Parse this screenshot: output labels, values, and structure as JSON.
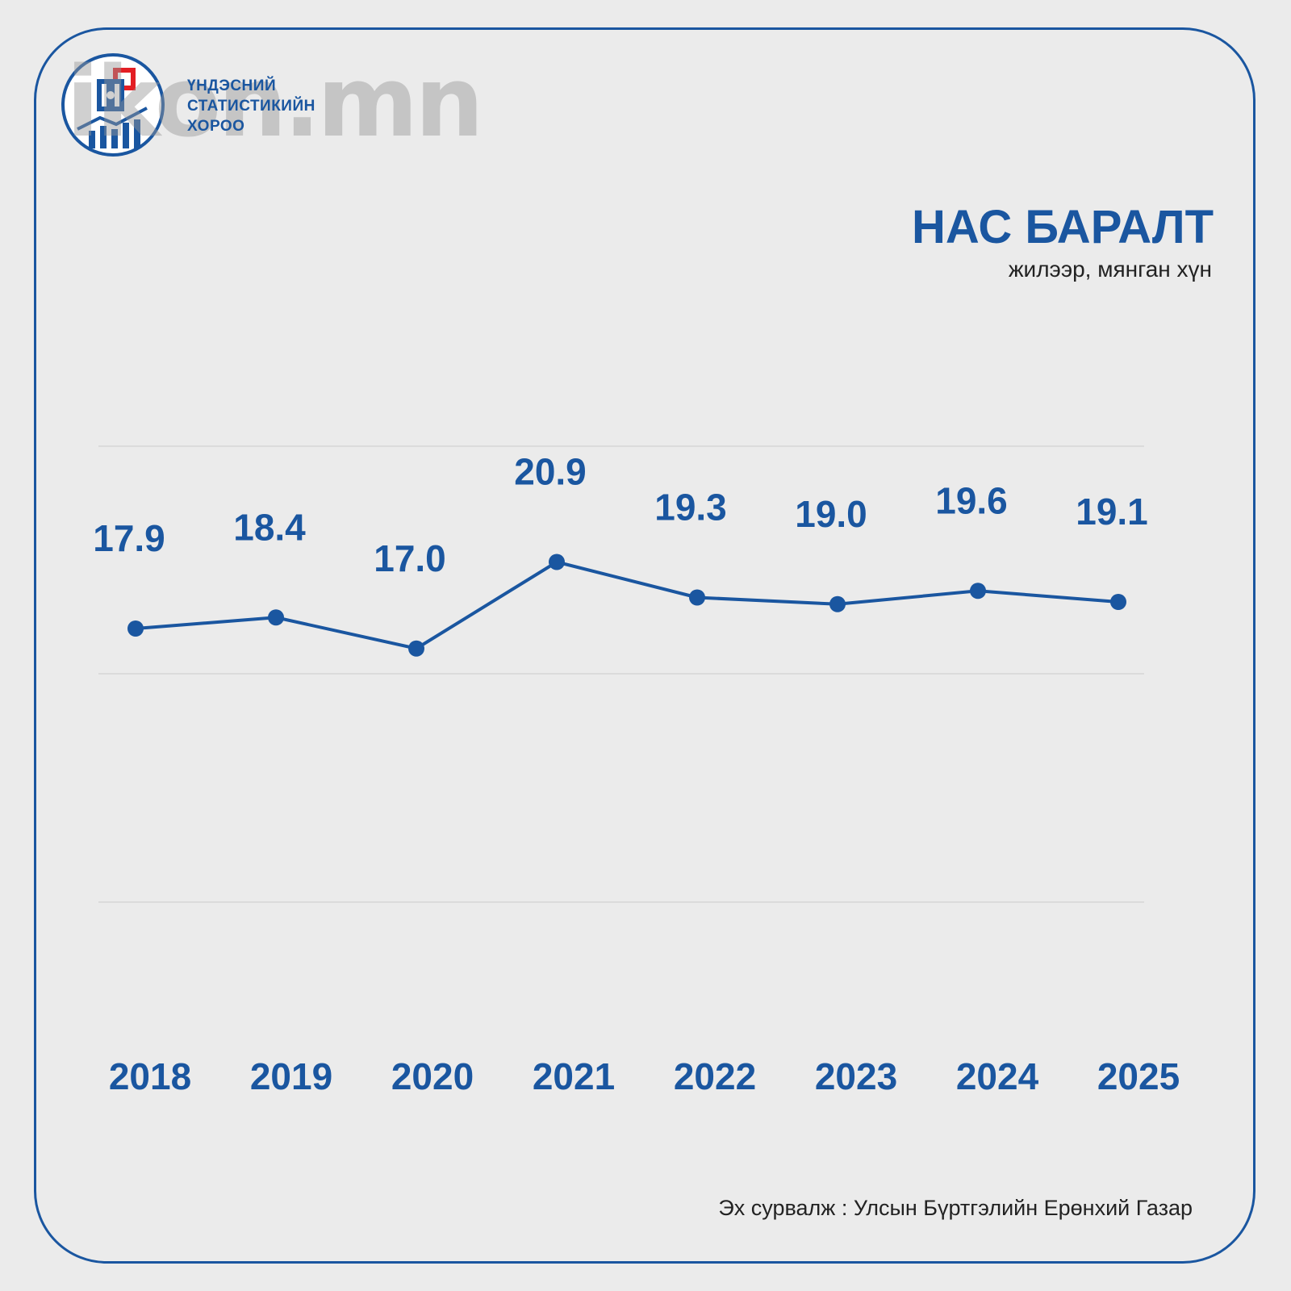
{
  "brand": {
    "logo_lines": [
      "ҮНДЭСНИЙ",
      "СТАТИСТИКИЙН",
      "ХОРОО"
    ],
    "watermark": "ikon.mn",
    "accent": "#1a56a0",
    "logo_red": "#e31e24"
  },
  "title": "НАС БАРАЛТ",
  "subtitle": "жилээр, мянган хүн",
  "source": "Эх сурвалж : Улсын Бүртгэлийн Ерөнхий Газар",
  "chart_data": {
    "type": "line",
    "categories": [
      "2018",
      "2019",
      "2020",
      "2021",
      "2022",
      "2023",
      "2024",
      "2025"
    ],
    "values": [
      17.9,
      18.4,
      17.0,
      20.9,
      19.3,
      19.0,
      19.6,
      19.1
    ],
    "data_labels": [
      "17.9",
      "18.4",
      "17.0",
      "20.9",
      "19.3",
      "19.0",
      "19.6",
      "19.1"
    ],
    "title": "НАС БАРАЛТ",
    "subtitle": "жилээр, мянган хүн",
    "grid": true,
    "legend": "none",
    "color": "#1a56a0"
  }
}
